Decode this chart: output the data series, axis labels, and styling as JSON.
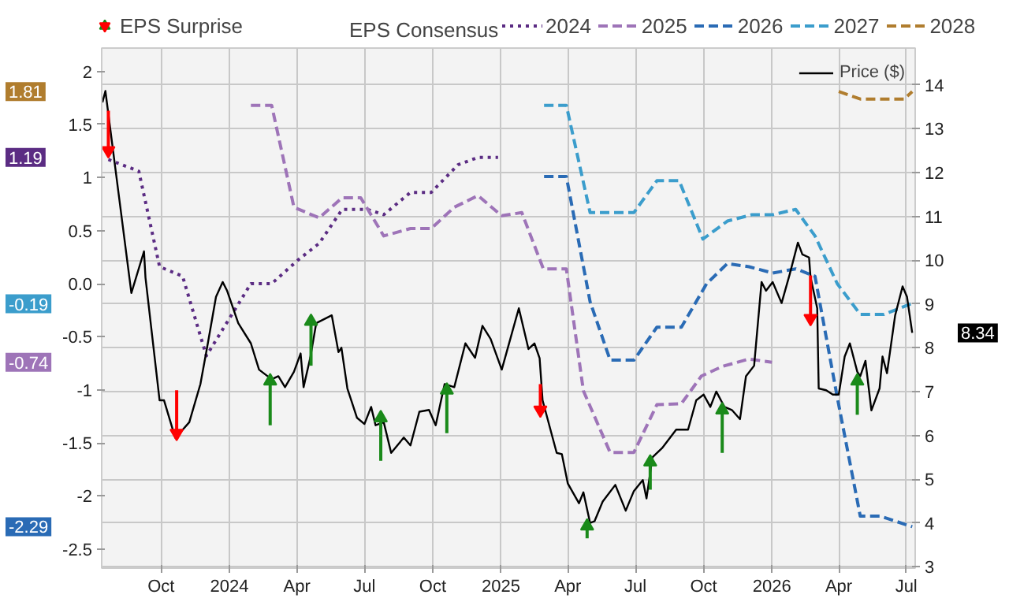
{
  "chart_data": {
    "type": "line",
    "legend_title": "EPS Consensus",
    "grid": true,
    "legend": "top",
    "annotations": [
      "1.19",
      "-0.74",
      "-2.29",
      "-0.19",
      "1.81",
      "8.34"
    ],
    "xlim": [
      "2023-07-13",
      "2026-07-13"
    ],
    "xticks": [
      {
        "value": "2023-10-01",
        "label": "Oct"
      },
      {
        "value": "2024-01-01",
        "label": "2024"
      },
      {
        "value": "2024-04-01",
        "label": "Apr"
      },
      {
        "value": "2024-07-01",
        "label": "Jul"
      },
      {
        "value": "2024-10-01",
        "label": "Oct"
      },
      {
        "value": "2025-01-01",
        "label": "2025"
      },
      {
        "value": "2025-04-01",
        "label": "Apr"
      },
      {
        "value": "2025-07-01",
        "label": "Jul"
      },
      {
        "value": "2025-10-01",
        "label": "Oct"
      },
      {
        "value": "2026-01-01",
        "label": "2026"
      },
      {
        "value": "2026-04-01",
        "label": "Apr"
      },
      {
        "value": "2026-07-01",
        "label": "Jul"
      }
    ],
    "ylim": [
      -2.68,
      2.22
    ],
    "yticks": [
      -2.5,
      -2,
      -1.5,
      -1,
      -0.5,
      {
        "value": 0,
        "label": "0.0"
      },
      0.5,
      1,
      1.5,
      2
    ],
    "y2lim": [
      2.97,
      14.84
    ],
    "y2ticks": [
      3,
      4,
      5,
      6,
      7,
      8,
      9,
      10,
      11,
      12,
      13,
      14
    ],
    "series": [
      {
        "name": "2024",
        "color": "#5b2c83",
        "line_style": "dotted",
        "x": [
          "2023-07-22",
          "2023-09-01",
          "2023-09-29",
          "2023-10-30",
          "2023-12-01",
          "2024-01-30",
          "2024-02-27",
          "2024-04-02",
          "2024-05-01",
          "2024-06-01",
          "2024-07-05",
          "2024-07-27",
          "2024-09-01",
          "2024-09-29",
          "2024-11-04",
          "2024-12-01",
          "2024-12-28"
        ],
        "values": [
          1.17,
          1.06,
          0.16,
          0.07,
          -0.68,
          0.0,
          0.0,
          0.22,
          0.38,
          0.7,
          0.7,
          0.65,
          0.86,
          0.86,
          1.12,
          1.19,
          1.19
        ]
      },
      {
        "name": "2025",
        "color": "#9e74b8",
        "line_style": "dashed",
        "x": [
          "2024-01-30",
          "2024-02-27",
          "2024-03-28",
          "2024-05-01",
          "2024-06-01",
          "2024-06-26",
          "2024-07-27",
          "2024-09-01",
          "2024-09-29",
          "2024-10-30",
          "2024-12-01",
          "2025-01-02",
          "2025-01-29",
          "2025-02-27",
          "2025-03-30",
          "2025-04-22",
          "2025-05-28",
          "2025-06-29",
          "2025-07-30",
          "2025-09-01",
          "2025-09-28",
          "2025-10-26",
          "2025-12-01",
          "2026-01-01"
        ],
        "values": [
          1.68,
          1.68,
          0.72,
          0.62,
          0.81,
          0.81,
          0.45,
          0.52,
          0.52,
          0.72,
          0.83,
          0.64,
          0.67,
          0.14,
          0.14,
          -1.01,
          -1.59,
          -1.59,
          -1.14,
          -1.13,
          -0.87,
          -0.78,
          -0.71,
          -0.74
        ]
      },
      {
        "name": "2026",
        "color": "#2a6bb5",
        "line_style": "dashed",
        "x": [
          "2025-02-28",
          "2025-03-30",
          "2025-05-01",
          "2025-05-28",
          "2025-06-29",
          "2025-07-30",
          "2025-09-01",
          "2025-10-05",
          "2025-11-02",
          "2025-12-01",
          "2026-01-02",
          "2026-02-02",
          "2026-02-28",
          "2026-03-30",
          "2026-04-30",
          "2026-05-27",
          "2026-07-09"
        ],
        "values": [
          1.01,
          1.01,
          -0.17,
          -0.72,
          -0.72,
          -0.41,
          -0.41,
          0.0,
          0.19,
          0.16,
          0.1,
          0.14,
          0.07,
          -1.07,
          -2.19,
          -2.19,
          -2.29
        ]
      },
      {
        "name": "2027",
        "color": "#3b9dcc",
        "line_style": "dashed",
        "x": [
          "2025-02-28",
          "2025-03-30",
          "2025-05-01",
          "2025-06-29",
          "2025-07-30",
          "2025-08-29",
          "2025-09-30",
          "2025-11-02",
          "2025-12-05",
          "2026-01-02",
          "2026-02-02",
          "2026-02-28",
          "2026-03-30",
          "2026-04-30",
          "2026-06-01",
          "2026-07-07"
        ],
        "values": [
          1.68,
          1.68,
          0.67,
          0.67,
          0.97,
          0.97,
          0.42,
          0.59,
          0.65,
          0.65,
          0.7,
          0.45,
          0.0,
          -0.29,
          -0.29,
          -0.19
        ]
      },
      {
        "name": "2028",
        "color": "#b07d2e",
        "line_style": "dashed",
        "x": [
          "2026-04-01",
          "2026-04-30",
          "2026-06-28",
          "2026-07-09"
        ],
        "values": [
          1.81,
          1.74,
          1.74,
          1.81
        ]
      },
      {
        "name": "Price ($)",
        "color": "#000000",
        "axis": "y2",
        "line_style": "solid",
        "x": [
          "2023-07-14",
          "2023-07-18",
          "2023-08-22",
          "2023-09-08",
          "2023-09-10",
          "2023-09-29",
          "2023-10-05",
          "2023-10-20",
          "2023-10-26",
          "2023-11-08",
          "2023-11-23",
          "2023-12-03",
          "2023-12-14",
          "2023-12-23",
          "2023-12-29",
          "2024-01-13",
          "2024-01-30",
          "2024-02-10",
          "2024-02-27",
          "2024-03-07",
          "2024-03-16",
          "2024-03-28",
          "2024-04-06",
          "2024-04-10",
          "2024-04-19",
          "2024-04-27",
          "2024-05-18",
          "2024-05-27",
          "2024-05-31",
          "2024-06-08",
          "2024-06-21",
          "2024-07-01",
          "2024-07-10",
          "2024-07-16",
          "2024-07-27",
          "2024-08-06",
          "2024-08-23",
          "2024-09-01",
          "2024-09-13",
          "2024-09-26",
          "2024-10-05",
          "2024-10-17",
          "2024-10-30",
          "2024-11-14",
          "2024-11-27",
          "2024-12-07",
          "2024-12-18",
          "2025-01-02",
          "2025-01-13",
          "2025-01-25",
          "2025-02-07",
          "2025-02-15",
          "2025-02-22",
          "2025-02-26",
          "2025-03-17",
          "2025-03-24",
          "2025-04-01",
          "2025-04-16",
          "2025-04-22",
          "2025-05-01",
          "2025-05-07",
          "2025-05-18",
          "2025-06-04",
          "2025-06-18",
          "2025-06-29",
          "2025-07-11",
          "2025-07-16",
          "2025-07-24",
          "2025-08-06",
          "2025-08-25",
          "2025-09-10",
          "2025-09-21",
          "2025-10-01",
          "2025-10-10",
          "2025-10-18",
          "2025-10-29",
          "2025-11-08",
          "2025-11-19",
          "2025-11-27",
          "2025-12-08",
          "2025-12-18",
          "2025-12-24",
          "2026-01-02",
          "2026-01-14",
          "2026-01-25",
          "2026-02-05",
          "2026-02-11",
          "2026-02-20",
          "2026-02-22",
          "2026-03-03",
          "2026-03-05",
          "2026-03-15",
          "2026-03-24",
          "2026-04-01",
          "2026-04-09",
          "2026-04-16",
          "2026-04-26",
          "2026-04-30",
          "2026-05-07",
          "2026-05-15",
          "2026-05-26",
          "2026-05-30",
          "2026-06-05",
          "2026-06-16",
          "2026-06-26",
          "2026-07-02",
          "2026-07-09"
        ],
        "values": [
          13.6,
          13.86,
          9.25,
          10.2,
          9.6,
          6.8,
          6.8,
          5.95,
          6.05,
          6.3,
          7.17,
          8.1,
          9.16,
          9.5,
          9.3,
          8.56,
          8.1,
          7.5,
          7.28,
          7.35,
          7.1,
          7.45,
          7.87,
          7.1,
          7.77,
          8.56,
          8.74,
          7.9,
          8.0,
          7.07,
          6.4,
          6.26,
          6.65,
          6.23,
          6.3,
          5.6,
          5.95,
          5.77,
          6.54,
          6.58,
          6.23,
          7.17,
          7.1,
          8.1,
          7.77,
          8.5,
          8.2,
          7.5,
          8.17,
          8.9,
          7.97,
          8.1,
          7.76,
          6.8,
          5.6,
          5.57,
          4.9,
          4.45,
          4.7,
          4.0,
          4.04,
          4.49,
          4.87,
          4.28,
          4.73,
          4.98,
          4.56,
          5.5,
          5.71,
          6.13,
          6.13,
          6.8,
          6.93,
          6.65,
          7.0,
          6.65,
          6.58,
          6.37,
          7.35,
          7.59,
          9.5,
          9.3,
          9.5,
          9.02,
          9.68,
          10.4,
          10.13,
          10.06,
          9.61,
          8.9,
          7.07,
          7.03,
          6.93,
          6.93,
          7.8,
          8.1,
          7.45,
          7.35,
          7.7,
          6.57,
          7.07,
          7.8,
          7.42,
          8.74,
          9.4,
          9.16,
          8.34
        ]
      },
      {
        "name": "EPS Surprise",
        "type": "scatter",
        "marker": "triangle",
        "color": "#1a8a1a",
        "axis": "y2",
        "x": [
          "2024-02-25",
          "2024-04-20",
          "2024-07-23",
          "2024-10-20",
          "2025-04-27",
          "2025-07-21",
          "2025-10-26",
          "2026-04-26"
        ],
        "values": [
          7.24,
          8.6,
          6.4,
          7.03,
          3.93,
          5.39,
          6.58,
          7.24
        ],
        "errors": [
          [
            6.23,
            7.24
          ],
          [
            7.59,
            8.6
          ],
          [
            5.42,
            6.4
          ],
          [
            6.05,
            7.03
          ],
          [
            3.65,
            3.93
          ],
          [
            4.76,
            5.39
          ],
          [
            5.6,
            6.58
          ],
          [
            6.47,
            7.24
          ]
        ]
      },
      {
        "type": "scatter",
        "marker": "triangle",
        "color": "#ff0000",
        "axis": "y2",
        "x": [
          "2023-07-22",
          "2023-10-22",
          "2025-02-23",
          "2026-02-22"
        ],
        "values": [
          12.5,
          6.05,
          6.58,
          8.67
        ],
        "errors": [
          [
            12.5,
            13.41
          ],
          [
            6.05,
            7.03
          ],
          [
            6.58,
            7.17
          ],
          [
            8.67,
            9.65
          ]
        ]
      }
    ]
  }
}
